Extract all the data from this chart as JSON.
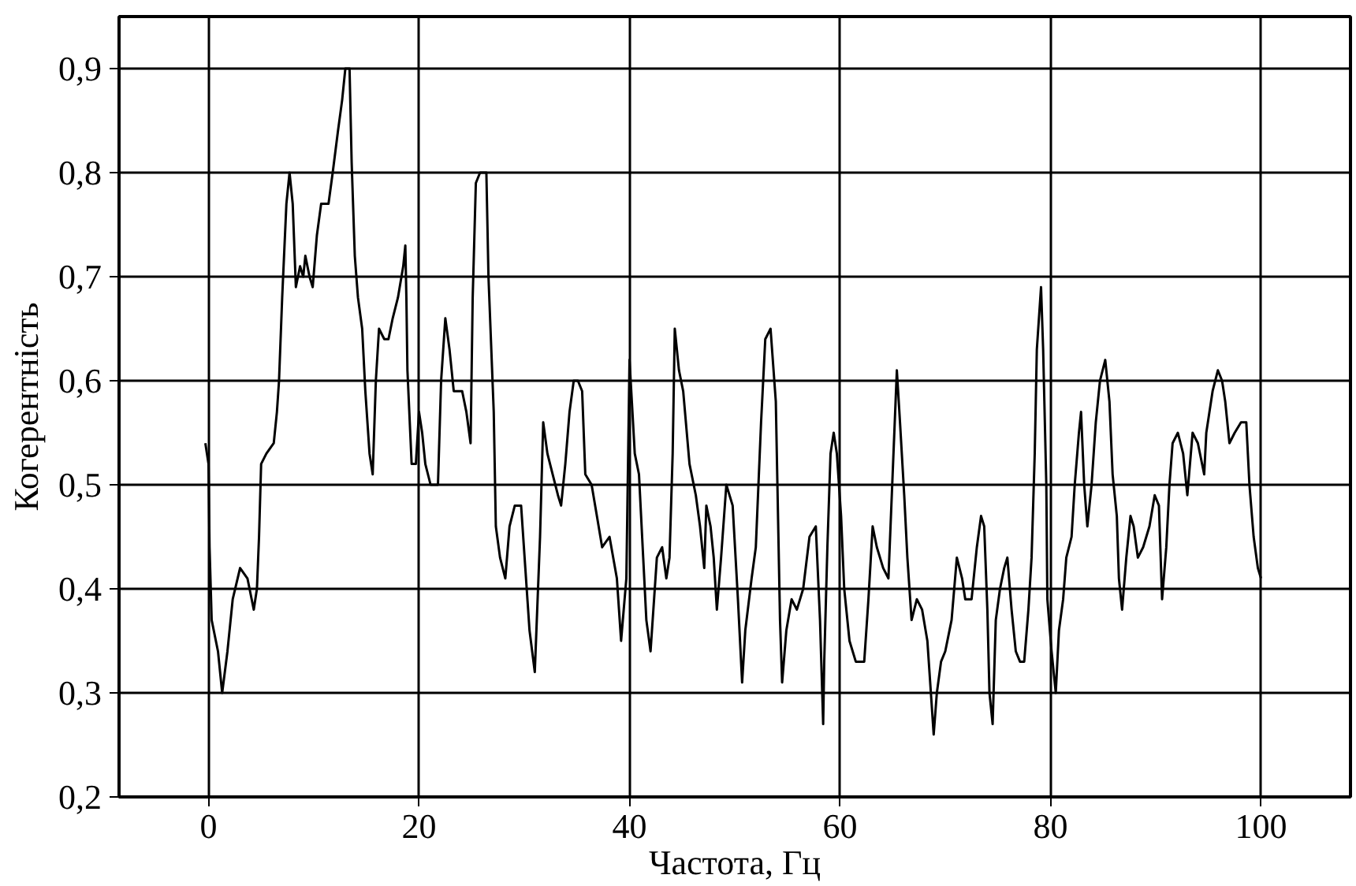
{
  "chart_data": {
    "type": "line",
    "xlabel": "Частота, Гц",
    "ylabel": "Когерентність",
    "xlim": [
      -8.5,
      108.5
    ],
    "ylim": [
      0.2,
      0.95
    ],
    "xticks": [
      0,
      20,
      40,
      60,
      80,
      100
    ],
    "yticks": [
      {
        "value": 0.2,
        "label": "0,2"
      },
      {
        "value": 0.3,
        "label": "0,3"
      },
      {
        "value": 0.4,
        "label": "0,4"
      },
      {
        "value": 0.5,
        "label": "0,5"
      },
      {
        "value": 0.6,
        "label": "0,6"
      },
      {
        "value": 0.7,
        "label": "0,7"
      },
      {
        "value": 0.8,
        "label": "0,8"
      },
      {
        "value": 0.9,
        "label": "0,9"
      }
    ],
    "grid": true,
    "line_style": "solid",
    "series": [
      {
        "color": "#000000",
        "x": [
          -0.3,
          0,
          0.1,
          0.3,
          0.9,
          1.3,
          1.8,
          2.3,
          3.0,
          3.7,
          4.3,
          4.6,
          4.8,
          5.0,
          5.5,
          6.2,
          6.5,
          6.7,
          7.0,
          7.4,
          7.7,
          8.0,
          8.3,
          8.7,
          9.0,
          9.2,
          9.6,
          9.9,
          10.3,
          10.7,
          11.4,
          11.8,
          12.3,
          12.7,
          13.0,
          13.4,
          13.6,
          13.9,
          14.2,
          14.6,
          14.9,
          15.3,
          15.6,
          15.9,
          16.2,
          16.7,
          17.1,
          17.5,
          18.0,
          18.5,
          18.7,
          18.8,
          18.9,
          19.3,
          19.7,
          20.0,
          20.3,
          20.6,
          21.1,
          21.8,
          22.1,
          22.5,
          22.9,
          23.3,
          23.9,
          24.1,
          24.5,
          24.9,
          25.1,
          25.4,
          25.8,
          26.4,
          26.6,
          27.1,
          27.3,
          27.7,
          28.2,
          28.6,
          29.1,
          29.7,
          30.1,
          30.5,
          31.0,
          31.5,
          31.8,
          32.2,
          32.7,
          33.2,
          33.5,
          33.9,
          34.3,
          34.7,
          35.1,
          35.5,
          35.8,
          36.4,
          36.9,
          37.4,
          38.1,
          38.8,
          39.2,
          39.7,
          40.0,
          40.5,
          40.9,
          41.3,
          41.6,
          42.0,
          42.6,
          43.1,
          43.5,
          43.8,
          44.1,
          44.3,
          44.7,
          45.1,
          45.7,
          46.3,
          46.7,
          47.1,
          47.3,
          47.7,
          48.0,
          48.3,
          48.7,
          49.2,
          49.8,
          50.3,
          50.7,
          51.0,
          51.6,
          52.0,
          52.5,
          52.9,
          53.4,
          53.9,
          54.3,
          54.5,
          54.9,
          55.4,
          55.9,
          56.5,
          57.1,
          57.7,
          58.1,
          58.4,
          58.5,
          58.8,
          59.1,
          59.4,
          59.7,
          60.1,
          60.4,
          60.9,
          61.5,
          62.3,
          62.7,
          63.1,
          63.5,
          64.1,
          64.6,
          65.0,
          65.4,
          65.7,
          66.1,
          66.4,
          66.8,
          67.3,
          67.8,
          68.3,
          68.7,
          68.9,
          69.2,
          69.6,
          70.0,
          70.6,
          71.1,
          71.6,
          71.9,
          72.5,
          73.0,
          73.4,
          73.7,
          74.0,
          74.2,
          74.5,
          74.8,
          75.2,
          75.6,
          75.9,
          76.3,
          76.7,
          77.1,
          77.5,
          77.9,
          78.2,
          78.5,
          78.7,
          79.1,
          79.3,
          79.6,
          79.7,
          80.1,
          80.5,
          80.8,
          81.2,
          81.5,
          82.0,
          82.3,
          82.7,
          82.9,
          83.2,
          83.5,
          83.9,
          84.3,
          84.7,
          85.2,
          85.6,
          85.9,
          86.3,
          86.5,
          86.8,
          87.2,
          87.6,
          87.9,
          88.3,
          88.8,
          89.4,
          89.9,
          90.3,
          90.6,
          91.0,
          91.3,
          91.6,
          92.1,
          92.6,
          93.0,
          93.5,
          94.0,
          94.6,
          94.8,
          95.4,
          95.9,
          96.3,
          96.6,
          97.0,
          97.5,
          98.1,
          98.6,
          98.9,
          99.3,
          99.7,
          100.0
        ],
        "values": [
          0.54,
          0.52,
          0.44,
          0.37,
          0.34,
          0.3,
          0.34,
          0.39,
          0.42,
          0.41,
          0.38,
          0.4,
          0.45,
          0.52,
          0.53,
          0.54,
          0.57,
          0.6,
          0.68,
          0.77,
          0.8,
          0.77,
          0.69,
          0.71,
          0.7,
          0.72,
          0.7,
          0.69,
          0.74,
          0.77,
          0.77,
          0.8,
          0.84,
          0.87,
          0.9,
          0.9,
          0.81,
          0.72,
          0.68,
          0.65,
          0.59,
          0.53,
          0.51,
          0.6,
          0.65,
          0.64,
          0.64,
          0.66,
          0.68,
          0.71,
          0.73,
          0.68,
          0.61,
          0.52,
          0.52,
          0.57,
          0.55,
          0.52,
          0.5,
          0.5,
          0.6,
          0.66,
          0.63,
          0.59,
          0.59,
          0.59,
          0.57,
          0.54,
          0.68,
          0.79,
          0.8,
          0.8,
          0.7,
          0.57,
          0.46,
          0.43,
          0.41,
          0.46,
          0.48,
          0.48,
          0.42,
          0.36,
          0.32,
          0.45,
          0.56,
          0.53,
          0.51,
          0.49,
          0.48,
          0.52,
          0.57,
          0.6,
          0.6,
          0.59,
          0.51,
          0.5,
          0.47,
          0.44,
          0.45,
          0.41,
          0.35,
          0.41,
          0.62,
          0.53,
          0.51,
          0.43,
          0.37,
          0.34,
          0.43,
          0.44,
          0.41,
          0.43,
          0.53,
          0.65,
          0.61,
          0.59,
          0.52,
          0.49,
          0.46,
          0.42,
          0.48,
          0.46,
          0.43,
          0.38,
          0.43,
          0.5,
          0.48,
          0.39,
          0.31,
          0.36,
          0.41,
          0.44,
          0.56,
          0.64,
          0.65,
          0.58,
          0.37,
          0.31,
          0.36,
          0.39,
          0.38,
          0.4,
          0.45,
          0.46,
          0.37,
          0.27,
          0.33,
          0.44,
          0.53,
          0.55,
          0.53,
          0.47,
          0.4,
          0.35,
          0.33,
          0.33,
          0.39,
          0.46,
          0.44,
          0.42,
          0.41,
          0.51,
          0.61,
          0.56,
          0.49,
          0.43,
          0.37,
          0.39,
          0.38,
          0.35,
          0.29,
          0.26,
          0.3,
          0.33,
          0.34,
          0.37,
          0.43,
          0.41,
          0.39,
          0.39,
          0.44,
          0.47,
          0.46,
          0.38,
          0.3,
          0.27,
          0.37,
          0.4,
          0.42,
          0.43,
          0.38,
          0.34,
          0.33,
          0.33,
          0.38,
          0.43,
          0.53,
          0.63,
          0.69,
          0.63,
          0.5,
          0.39,
          0.34,
          0.3,
          0.36,
          0.39,
          0.43,
          0.45,
          0.5,
          0.55,
          0.57,
          0.5,
          0.46,
          0.5,
          0.56,
          0.6,
          0.62,
          0.58,
          0.51,
          0.47,
          0.41,
          0.38,
          0.43,
          0.47,
          0.46,
          0.43,
          0.44,
          0.46,
          0.49,
          0.48,
          0.39,
          0.44,
          0.5,
          0.54,
          0.55,
          0.53,
          0.49,
          0.55,
          0.54,
          0.51,
          0.55,
          0.59,
          0.61,
          0.6,
          0.58,
          0.54,
          0.55,
          0.56,
          0.56,
          0.5,
          0.45,
          0.42,
          0.41
        ]
      }
    ]
  }
}
